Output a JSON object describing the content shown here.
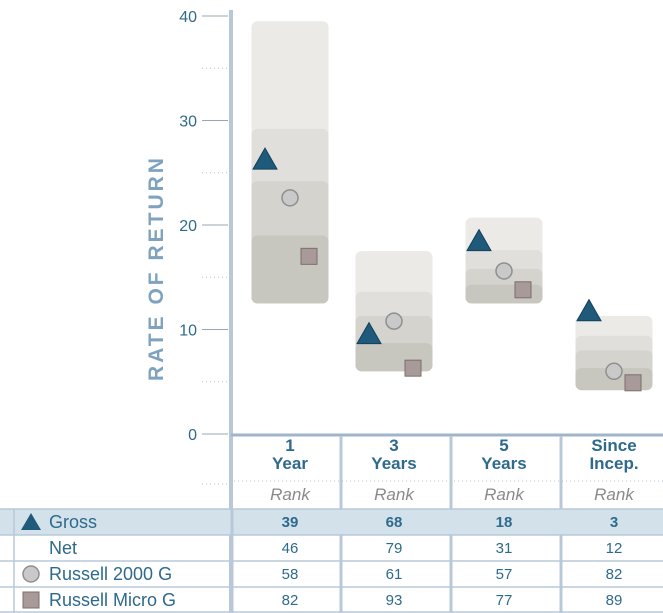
{
  "chart_data": {
    "type": "floating-bar",
    "ylabel": "RATE OF RETURN",
    "ylim": [
      0,
      40
    ],
    "yticks": [
      0,
      10,
      20,
      30,
      40
    ],
    "rank_header": "Rank",
    "periods": [
      {
        "label_lines": [
          "1",
          "Year"
        ],
        "bands": [
          {
            "low": 12.5,
            "high": 39.5
          },
          {
            "low": 12.5,
            "high": 29.2
          },
          {
            "low": 12.5,
            "high": 24.2
          },
          {
            "low": 12.5,
            "high": 19.0
          }
        ],
        "gross": 26.3,
        "russell_2000g": 22.6,
        "russell_micro_g": 17.0,
        "ranks": {
          "gross": "39",
          "net": "46",
          "russell_2000g": "58",
          "russell_micro_g": "82"
        }
      },
      {
        "label_lines": [
          "3",
          "Years"
        ],
        "bands": [
          {
            "low": 6.0,
            "high": 17.5
          },
          {
            "low": 6.0,
            "high": 13.6
          },
          {
            "low": 6.0,
            "high": 11.3
          },
          {
            "low": 6.0,
            "high": 8.7
          }
        ],
        "gross": 9.6,
        "russell_2000g": 10.8,
        "russell_micro_g": 6.3,
        "ranks": {
          "gross": "68",
          "net": "79",
          "russell_2000g": "61",
          "russell_micro_g": "93"
        }
      },
      {
        "label_lines": [
          "5",
          "Years"
        ],
        "bands": [
          {
            "low": 12.5,
            "high": 20.7
          },
          {
            "low": 12.5,
            "high": 17.6
          },
          {
            "low": 12.5,
            "high": 15.8
          },
          {
            "low": 12.5,
            "high": 14.3
          }
        ],
        "gross": 18.5,
        "russell_2000g": 15.6,
        "russell_micro_g": 13.8,
        "ranks": {
          "gross": "18",
          "net": "31",
          "russell_2000g": "57",
          "russell_micro_g": "77"
        }
      },
      {
        "label_lines": [
          "Since",
          "Incep."
        ],
        "bands": [
          {
            "low": 4.2,
            "high": 11.3
          },
          {
            "low": 4.2,
            "high": 9.4
          },
          {
            "low": 4.2,
            "high": 8.0
          },
          {
            "low": 4.2,
            "high": 6.3
          }
        ],
        "gross": 11.8,
        "russell_2000g": 6.0,
        "russell_micro_g": 4.9,
        "ranks": {
          "gross": "3",
          "net": "12",
          "russell_2000g": "82",
          "russell_micro_g": "89"
        }
      }
    ],
    "series": [
      {
        "key": "gross",
        "name": "Gross",
        "marker": "triangle",
        "color": "#1f5a7a"
      },
      {
        "key": "net",
        "name": "Net",
        "marker": "none",
        "color": "#1f5a7a"
      },
      {
        "key": "russell_2000g",
        "name": "Russell 2000 G",
        "marker": "circle",
        "color": "#c9c9c9"
      },
      {
        "key": "russell_micro_g",
        "name": "Russell Micro G",
        "marker": "square",
        "color": "#a89a98"
      }
    ],
    "band_colors": [
      "#ebeae7",
      "#e0dfdb",
      "#d4d3ce",
      "#c7c6bf"
    ],
    "highlight_row_color": "#d3e1ea"
  }
}
